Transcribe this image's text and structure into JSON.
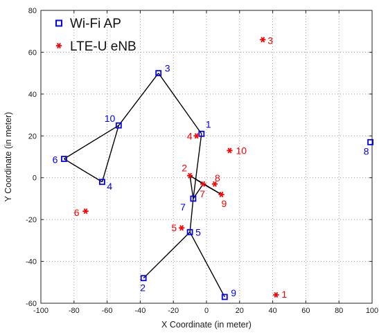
{
  "chart_data": {
    "type": "scatter",
    "title": "",
    "xlabel": "X Coordinate (in meter)",
    "ylabel": "Y Coordinate (in meter)",
    "xlim": [
      -100,
      100
    ],
    "ylim": [
      -60,
      80
    ],
    "xticks": [
      -100,
      -80,
      -60,
      -40,
      -20,
      0,
      20,
      40,
      60,
      80,
      100
    ],
    "yticks": [
      -60,
      -40,
      -20,
      0,
      20,
      40,
      60,
      80
    ],
    "grid": "dotted",
    "legend_position": "top-left",
    "series": [
      {
        "name": "Wi-Fi AP",
        "marker": "square",
        "color": "#0000ff",
        "points": [
          {
            "label": "1",
            "x": -3,
            "y": 21
          },
          {
            "label": "2",
            "x": -38,
            "y": -48
          },
          {
            "label": "3",
            "x": -29,
            "y": 50
          },
          {
            "label": "4",
            "x": -63,
            "y": -2
          },
          {
            "label": "5",
            "x": -10,
            "y": -26
          },
          {
            "label": "6",
            "x": -86,
            "y": 9
          },
          {
            "label": "7",
            "x": -8,
            "y": -10
          },
          {
            "label": "8",
            "x": 99,
            "y": 17
          },
          {
            "label": "9",
            "x": 11,
            "y": -57
          },
          {
            "label": "10",
            "x": -53,
            "y": 25
          }
        ]
      },
      {
        "name": "LTE-U eNB",
        "marker": "asterisk",
        "color": "#ff0000",
        "points": [
          {
            "label": "1",
            "x": 42,
            "y": -56
          },
          {
            "label": "2",
            "x": -10,
            "y": 1
          },
          {
            "label": "3",
            "x": 34,
            "y": 66
          },
          {
            "label": "4",
            "x": -6,
            "y": 20
          },
          {
            "label": "5",
            "x": -15,
            "y": -24
          },
          {
            "label": "6",
            "x": -73,
            "y": -16
          },
          {
            "label": "7",
            "x": -2,
            "y": -3
          },
          {
            "label": "8",
            "x": 5,
            "y": -3
          },
          {
            "label": "9",
            "x": 9,
            "y": -8
          },
          {
            "label": "10",
            "x": 14,
            "y": 13
          }
        ]
      }
    ],
    "connections": [
      {
        "from": "AP 3",
        "to": "AP 10"
      },
      {
        "from": "AP 3",
        "to": "AP 1"
      },
      {
        "from": "AP 1",
        "to": "AP 7"
      },
      {
        "from": "AP 10",
        "to": "AP 6"
      },
      {
        "from": "AP 10",
        "to": "AP 4"
      },
      {
        "from": "AP 6",
        "to": "AP 4"
      },
      {
        "from": "AP 7",
        "to": "AP 5"
      },
      {
        "from": "AP 5",
        "to": "AP 2"
      },
      {
        "from": "AP 5",
        "to": "AP 9"
      },
      {
        "from": "LTE 2",
        "to": "AP 7"
      },
      {
        "from": "LTE 2",
        "to": "LTE 7"
      },
      {
        "from": "LTE 7",
        "to": "AP 7"
      },
      {
        "from": "LTE 2",
        "to": "LTE 9"
      },
      {
        "from": "LTE 7",
        "to": "LTE 9"
      }
    ]
  }
}
